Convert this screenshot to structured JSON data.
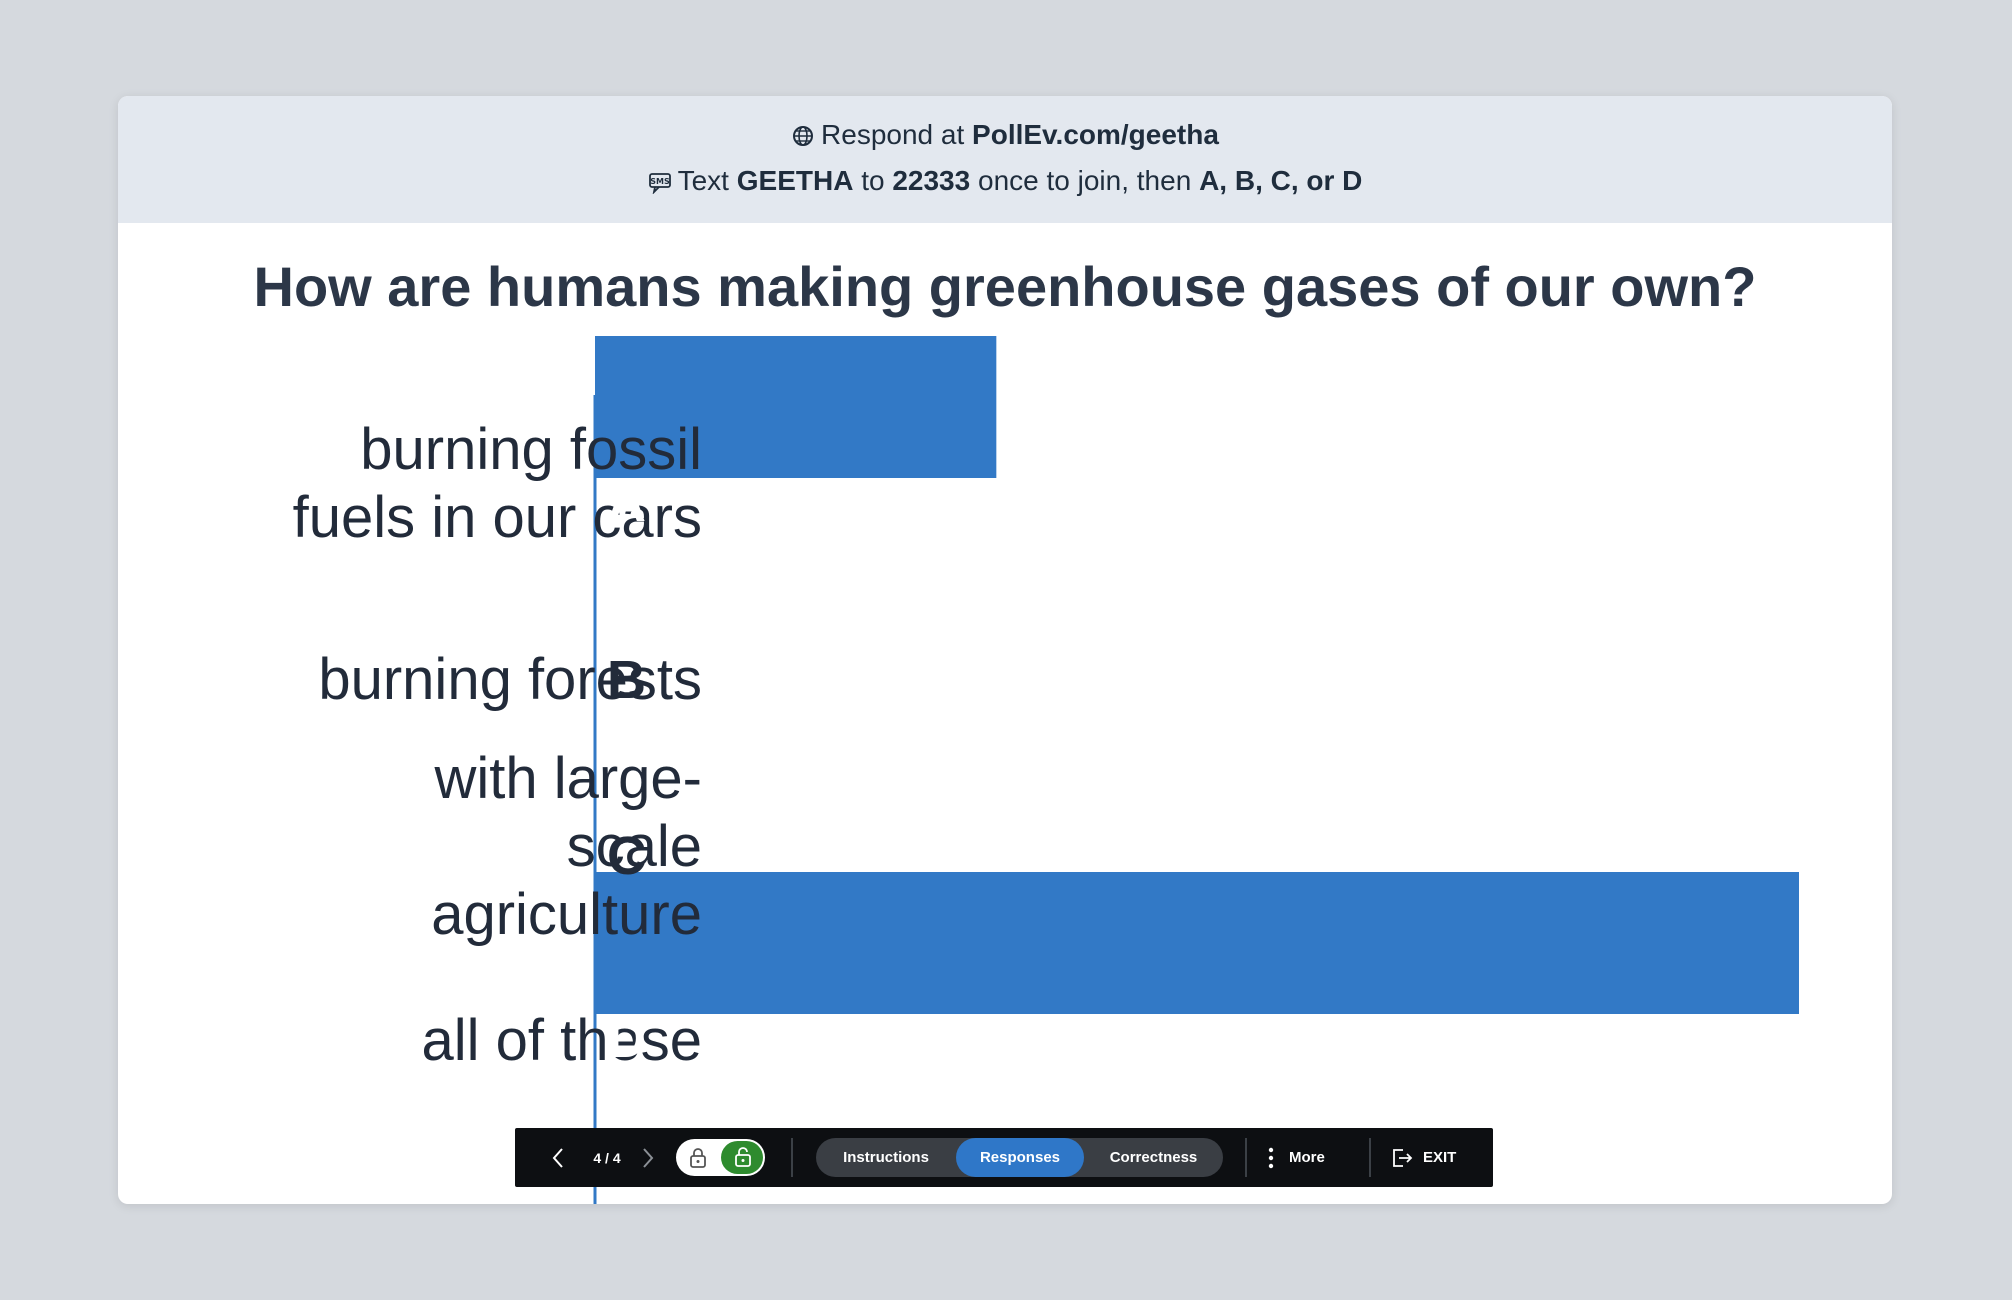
{
  "header": {
    "line1_prefix": "Respond at",
    "line1_url": "PollEv.com/geetha",
    "line2_prefix": "Text",
    "line2_keyword": "GEETHA",
    "line2_to": "to",
    "line2_number": "22333",
    "line2_mid": "once to join, then",
    "line2_options": "A, B, C, or D",
    "globe_icon": "globe-icon",
    "sms_icon": "sms-icon"
  },
  "question": "How are humans making greenhouse gases of our own?",
  "chart_data": {
    "type": "bar",
    "orientation": "horizontal",
    "categories": [
      "burning fossil fuels in our cars",
      "burning forests",
      "with large-scale agriculture",
      "all of these"
    ],
    "letters": [
      "A",
      "B",
      "C",
      "D"
    ],
    "values": [
      25,
      0,
      0,
      75
    ],
    "value_labels": [
      "25%",
      "",
      "",
      "75%"
    ],
    "xlim": [
      0,
      75
    ],
    "title": "How are humans making greenhouse gases of our own?",
    "bar_color": "#3279c6",
    "axis_color": "#3279c6"
  },
  "toolbar": {
    "page": "4 / 4",
    "tabs": [
      {
        "label": "Instructions",
        "active": false
      },
      {
        "label": "Responses",
        "active": true
      },
      {
        "label": "Correctness",
        "active": false
      }
    ],
    "more_label": "More",
    "exit_label": "EXIT",
    "accent_green": "#2e8b2e",
    "accent_blue": "#2f77c8"
  }
}
